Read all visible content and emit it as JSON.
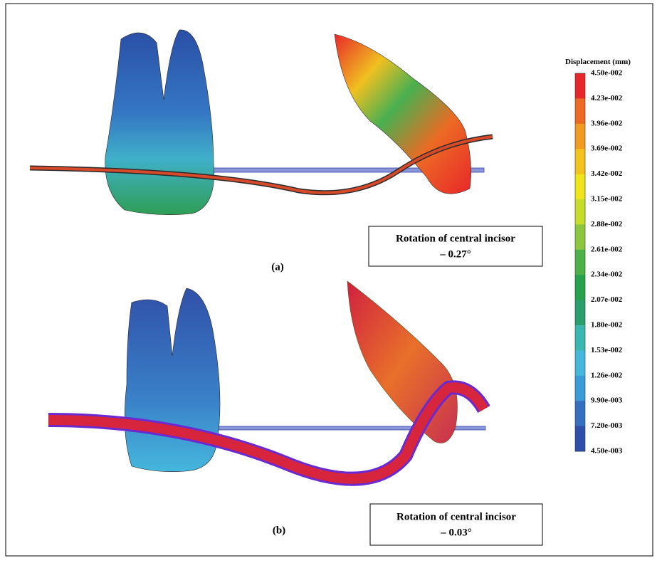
{
  "legend": {
    "title": "Displacement (mm)",
    "labels": [
      "4.50e-002",
      "4.23e-002",
      "3.96e-002",
      "3.69e-002",
      "3.42e-002",
      "3.15e-002",
      "2.88e-002",
      "2.61e-002",
      "2.34e-002",
      "2.07e-002",
      "1.80e-002",
      "1.53e-002",
      "1.26e-002",
      "9.90e-003",
      "7.20e-003",
      "4.50e-003"
    ],
    "colors": [
      "#e8272a",
      "#ec6a24",
      "#f09a22",
      "#f4c21e",
      "#efe31c",
      "#c6dc2a",
      "#8cc63e",
      "#4cb148",
      "#26a24c",
      "#2a9f6d",
      "#3ab8b0",
      "#45b7dc",
      "#3a9bd6",
      "#3570c0",
      "#2e4fa8"
    ]
  },
  "panels": [
    {
      "label": "(a)",
      "annotation": [
        "Rotation of central incisor",
        "– 0.27°"
      ]
    },
    {
      "label": "(b)",
      "annotation": [
        "Rotation of central incisor",
        "– 0.03°"
      ]
    }
  ]
}
